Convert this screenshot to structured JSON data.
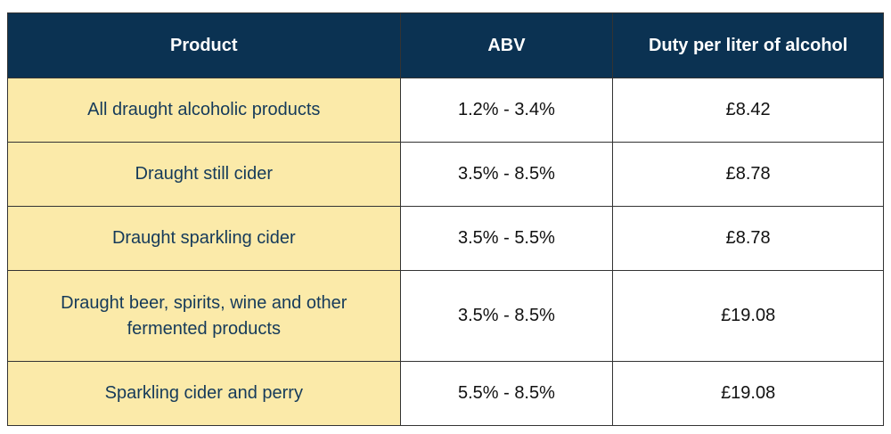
{
  "table": {
    "header": [
      "Product",
      "ABV",
      "Duty per liter of alcohol"
    ],
    "rows": [
      [
        "All draught alcoholic products",
        "1.2% - 3.4%",
        "£8.42"
      ],
      [
        "Draught still cider",
        "3.5% - 8.5%",
        "£8.78"
      ],
      [
        "Draught sparkling cider",
        "3.5% - 5.5%",
        "£8.78"
      ],
      [
        "Draught beer, spirits, wine and other fermented products",
        "3.5% - 8.5%",
        "£19.08"
      ],
      [
        "Sparkling cider and perry",
        "5.5% - 8.5%",
        "£19.08"
      ]
    ]
  }
}
